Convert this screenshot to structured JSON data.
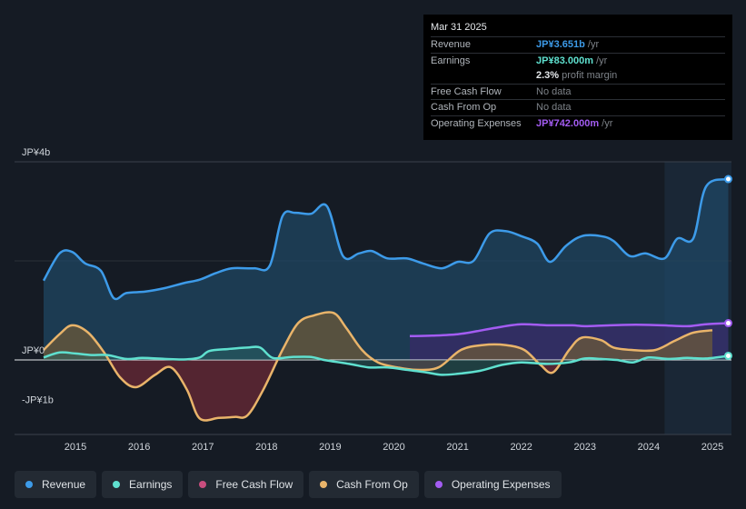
{
  "tooltip": {
    "date": "Mar 31 2025",
    "rows": [
      {
        "label": "Revenue",
        "value": "JP¥3.651b",
        "suffix": " /yr"
      },
      {
        "label": "Earnings",
        "value": "JP¥83.000m",
        "suffix": " /yr"
      },
      {
        "label": "",
        "value": "2.3%",
        "suffix": " profit margin"
      },
      {
        "label": "Free Cash Flow",
        "value": "No data",
        "suffix": ""
      },
      {
        "label": "Cash From Op",
        "value": "No data",
        "suffix": ""
      },
      {
        "label": "Operating Expenses",
        "value": "JP¥742.000m",
        "suffix": " /yr"
      }
    ]
  },
  "legend": [
    {
      "label": "Revenue",
      "color": "#3d9be9"
    },
    {
      "label": "Earnings",
      "color": "#5fe0cf"
    },
    {
      "label": "Free Cash Flow",
      "color": "#c94d7e"
    },
    {
      "label": "Cash From Op",
      "color": "#e9b46a"
    },
    {
      "label": "Operating Expenses",
      "color": "#a35cf2"
    }
  ],
  "chart_data": {
    "type": "area",
    "title": "",
    "y_unit": "JP¥ billions",
    "ylim": [
      -1.3,
      4
    ],
    "ytick_labels": [
      {
        "label": "JP¥4b",
        "value": 4
      },
      {
        "label": "JP¥0",
        "value": 0
      },
      {
        "label": "-JP¥1b",
        "value": -1
      }
    ],
    "xlim": [
      2014.5,
      2025.3
    ],
    "xtick_labels": [
      "2015",
      "2016",
      "2017",
      "2018",
      "2019",
      "2020",
      "2021",
      "2022",
      "2023",
      "2024",
      "2025"
    ],
    "xtick_values": [
      2015,
      2016,
      2017,
      2018,
      2019,
      2020,
      2021,
      2022,
      2023,
      2024,
      2025
    ],
    "highlight_from": 2024.25,
    "series": [
      {
        "name": "Revenue",
        "color": "#3d9be9",
        "points": [
          [
            2014.5,
            1.6
          ],
          [
            2014.75,
            2.15
          ],
          [
            2014.95,
            2.18
          ],
          [
            2015.15,
            1.95
          ],
          [
            2015.4,
            1.8
          ],
          [
            2015.6,
            1.25
          ],
          [
            2015.8,
            1.35
          ],
          [
            2016.1,
            1.38
          ],
          [
            2016.4,
            1.45
          ],
          [
            2016.7,
            1.55
          ],
          [
            2016.95,
            1.62
          ],
          [
            2017.2,
            1.75
          ],
          [
            2017.45,
            1.85
          ],
          [
            2017.8,
            1.85
          ],
          [
            2018.05,
            1.9
          ],
          [
            2018.25,
            2.9
          ],
          [
            2018.45,
            2.97
          ],
          [
            2018.7,
            2.95
          ],
          [
            2018.95,
            3.1
          ],
          [
            2019.2,
            2.1
          ],
          [
            2019.45,
            2.15
          ],
          [
            2019.65,
            2.2
          ],
          [
            2019.9,
            2.05
          ],
          [
            2020.2,
            2.05
          ],
          [
            2020.45,
            1.95
          ],
          [
            2020.75,
            1.85
          ],
          [
            2021.0,
            1.98
          ],
          [
            2021.25,
            2.0
          ],
          [
            2021.5,
            2.55
          ],
          [
            2021.75,
            2.6
          ],
          [
            2022.0,
            2.5
          ],
          [
            2022.25,
            2.35
          ],
          [
            2022.45,
            1.98
          ],
          [
            2022.7,
            2.3
          ],
          [
            2022.95,
            2.5
          ],
          [
            2023.25,
            2.5
          ],
          [
            2023.45,
            2.4
          ],
          [
            2023.7,
            2.1
          ],
          [
            2023.95,
            2.15
          ],
          [
            2024.25,
            2.05
          ],
          [
            2024.45,
            2.45
          ],
          [
            2024.7,
            2.45
          ],
          [
            2024.9,
            3.5
          ],
          [
            2025.25,
            3.651
          ]
        ]
      },
      {
        "name": "Earnings",
        "color": "#5fe0cf",
        "points": [
          [
            2014.5,
            0.05
          ],
          [
            2014.75,
            0.15
          ],
          [
            2015.0,
            0.13
          ],
          [
            2015.25,
            0.1
          ],
          [
            2015.5,
            0.1
          ],
          [
            2015.8,
            0.02
          ],
          [
            2016.05,
            0.04
          ],
          [
            2016.4,
            0.02
          ],
          [
            2016.7,
            0.01
          ],
          [
            2016.95,
            0.05
          ],
          [
            2017.1,
            0.18
          ],
          [
            2017.4,
            0.22
          ],
          [
            2017.7,
            0.25
          ],
          [
            2017.9,
            0.25
          ],
          [
            2018.1,
            0.04
          ],
          [
            2018.4,
            0.06
          ],
          [
            2018.7,
            0.06
          ],
          [
            2018.9,
            0.0
          ],
          [
            2019.3,
            -0.08
          ],
          [
            2019.6,
            -0.15
          ],
          [
            2019.9,
            -0.15
          ],
          [
            2020.2,
            -0.2
          ],
          [
            2020.5,
            -0.25
          ],
          [
            2020.75,
            -0.3
          ],
          [
            2021.0,
            -0.28
          ],
          [
            2021.35,
            -0.22
          ],
          [
            2021.7,
            -0.1
          ],
          [
            2022.0,
            -0.05
          ],
          [
            2022.4,
            -0.08
          ],
          [
            2022.75,
            -0.05
          ],
          [
            2023.0,
            0.03
          ],
          [
            2023.25,
            0.02
          ],
          [
            2023.5,
            0.0
          ],
          [
            2023.75,
            -0.05
          ],
          [
            2024.0,
            0.05
          ],
          [
            2024.3,
            0.02
          ],
          [
            2024.6,
            0.04
          ],
          [
            2024.9,
            0.03
          ],
          [
            2025.25,
            0.083
          ]
        ]
      },
      {
        "name": "Cash From Op",
        "color": "#e9b46a",
        "points": [
          [
            2014.5,
            0.2
          ],
          [
            2014.75,
            0.52
          ],
          [
            2014.95,
            0.7
          ],
          [
            2015.2,
            0.55
          ],
          [
            2015.45,
            0.15
          ],
          [
            2015.7,
            -0.35
          ],
          [
            2015.95,
            -0.55
          ],
          [
            2016.25,
            -0.3
          ],
          [
            2016.5,
            -0.15
          ],
          [
            2016.75,
            -0.6
          ],
          [
            2016.95,
            -1.18
          ],
          [
            2017.25,
            -1.17
          ],
          [
            2017.5,
            -1.15
          ],
          [
            2017.7,
            -1.12
          ],
          [
            2017.95,
            -0.6
          ],
          [
            2018.25,
            0.2
          ],
          [
            2018.5,
            0.75
          ],
          [
            2018.75,
            0.9
          ],
          [
            2019.05,
            0.95
          ],
          [
            2019.25,
            0.65
          ],
          [
            2019.5,
            0.2
          ],
          [
            2019.75,
            -0.05
          ],
          [
            2020.05,
            -0.15
          ],
          [
            2020.35,
            -0.2
          ],
          [
            2020.7,
            -0.15
          ],
          [
            2021.05,
            0.2
          ],
          [
            2021.4,
            0.3
          ],
          [
            2021.75,
            0.3
          ],
          [
            2022.05,
            0.2
          ],
          [
            2022.3,
            -0.1
          ],
          [
            2022.5,
            -0.25
          ],
          [
            2022.75,
            0.2
          ],
          [
            2022.95,
            0.45
          ],
          [
            2023.25,
            0.4
          ],
          [
            2023.45,
            0.25
          ],
          [
            2023.75,
            0.2
          ],
          [
            2024.1,
            0.2
          ],
          [
            2024.4,
            0.38
          ],
          [
            2024.7,
            0.55
          ],
          [
            2025.0,
            0.6
          ]
        ]
      },
      {
        "name": "Operating Expenses",
        "color": "#a35cf2",
        "points": [
          [
            2020.25,
            0.48
          ],
          [
            2020.6,
            0.49
          ],
          [
            2021.0,
            0.52
          ],
          [
            2021.3,
            0.58
          ],
          [
            2021.6,
            0.65
          ],
          [
            2022.0,
            0.72
          ],
          [
            2022.4,
            0.7
          ],
          [
            2022.8,
            0.7
          ],
          [
            2023.0,
            0.68
          ],
          [
            2023.4,
            0.7
          ],
          [
            2023.8,
            0.71
          ],
          [
            2024.2,
            0.7
          ],
          [
            2024.6,
            0.68
          ],
          [
            2024.9,
            0.72
          ],
          [
            2025.25,
            0.742
          ]
        ]
      }
    ]
  }
}
